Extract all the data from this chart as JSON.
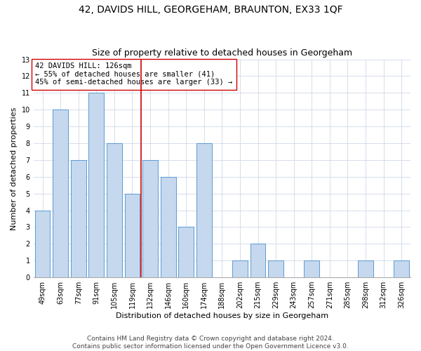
{
  "title": "42, DAVIDS HILL, GEORGEHAM, BRAUNTON, EX33 1QF",
  "subtitle": "Size of property relative to detached houses in Georgeham",
  "xlabel": "Distribution of detached houses by size in Georgeham",
  "ylabel": "Number of detached properties",
  "categories": [
    "49sqm",
    "63sqm",
    "77sqm",
    "91sqm",
    "105sqm",
    "119sqm",
    "132sqm",
    "146sqm",
    "160sqm",
    "174sqm",
    "188sqm",
    "202sqm",
    "215sqm",
    "229sqm",
    "243sqm",
    "257sqm",
    "271sqm",
    "285sqm",
    "298sqm",
    "312sqm",
    "326sqm"
  ],
  "values": [
    4,
    10,
    7,
    11,
    8,
    5,
    7,
    6,
    3,
    8,
    0,
    1,
    2,
    1,
    0,
    1,
    0,
    0,
    1,
    0,
    1
  ],
  "bar_color": "#c5d8ed",
  "bar_edge_color": "#5b9bd5",
  "reference_line_x": 5.5,
  "reference_line_color": "#cc0000",
  "annotation_line1": "42 DAVIDS HILL: 126sqm",
  "annotation_line2": "← 55% of detached houses are smaller (41)",
  "annotation_line3": "45% of semi-detached houses are larger (33) →",
  "annotation_box_edge_color": "#cc0000",
  "annotation_box_face_color": "#ffffff",
  "ylim": [
    0,
    13
  ],
  "yticks": [
    0,
    1,
    2,
    3,
    4,
    5,
    6,
    7,
    8,
    9,
    10,
    11,
    12,
    13
  ],
  "footer_line1": "Contains HM Land Registry data © Crown copyright and database right 2024.",
  "footer_line2": "Contains public sector information licensed under the Open Government Licence v3.0.",
  "bg_color": "#ffffff",
  "grid_color": "#d0d8e8",
  "title_fontsize": 10,
  "subtitle_fontsize": 9,
  "axis_label_fontsize": 8,
  "tick_fontsize": 7,
  "annotation_fontsize": 7.5,
  "footer_fontsize": 6.5
}
